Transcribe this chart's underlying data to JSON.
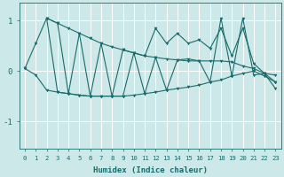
{
  "xlabel": "Humidex (Indice chaleur)",
  "xlim": [
    -0.5,
    23.5
  ],
  "ylim": [
    -1.55,
    1.35
  ],
  "yticks": [
    -1,
    0,
    1
  ],
  "xticks": [
    0,
    1,
    2,
    3,
    4,
    5,
    6,
    7,
    8,
    9,
    10,
    11,
    12,
    13,
    14,
    15,
    16,
    17,
    18,
    19,
    20,
    21,
    22,
    23
  ],
  "bg_color": "#cde8e8",
  "line_color": "#1a6b6b",
  "grid_color": "#ffffff",
  "series": [
    {
      "x": [
        0,
        1,
        2,
        3,
        4,
        5,
        6,
        7,
        8,
        9,
        10,
        11,
        12,
        13,
        14,
        15,
        16,
        17,
        18,
        19,
        20,
        21,
        22,
        23
      ],
      "y": [
        0.05,
        0.55,
        1.05,
        0.95,
        0.85,
        0.75,
        0.65,
        0.55,
        0.48,
        0.42,
        0.36,
        0.3,
        0.27,
        0.24,
        0.22,
        0.2,
        0.2,
        0.2,
        0.2,
        0.18,
        0.1,
        0.05,
        -0.05,
        -0.08
      ]
    },
    {
      "x": [
        0,
        1,
        2,
        3,
        4,
        5,
        6,
        7,
        8,
        9,
        10,
        11,
        12,
        13,
        14,
        15,
        16,
        17,
        18,
        19,
        20,
        21,
        22,
        23
      ],
      "y": [
        0.05,
        -0.08,
        -0.38,
        -0.42,
        -0.45,
        -0.48,
        -0.5,
        -0.5,
        -0.5,
        -0.5,
        -0.48,
        -0.45,
        -0.42,
        -0.38,
        -0.35,
        -0.32,
        -0.28,
        -0.22,
        -0.18,
        -0.1,
        -0.05,
        0.0,
        -0.1,
        -0.22
      ]
    },
    {
      "x": [
        2,
        3,
        4,
        5,
        6,
        7,
        8,
        9,
        10,
        11,
        12,
        13,
        14,
        15,
        16,
        17,
        18,
        19,
        20,
        21,
        22,
        23
      ],
      "y": [
        1.05,
        -0.42,
        -0.45,
        -0.48,
        -0.5,
        -0.5,
        -0.5,
        -0.5,
        0.36,
        -0.45,
        0.27,
        -0.38,
        0.22,
        0.24,
        0.2,
        -0.22,
        1.05,
        -0.1,
        1.05,
        -0.08,
        -0.05,
        -0.22
      ]
    },
    {
      "x": [
        2,
        3,
        4,
        5,
        6,
        7,
        8,
        9,
        10,
        11,
        12,
        13,
        14,
        15,
        16,
        17,
        18,
        19,
        20,
        21,
        22,
        23
      ],
      "y": [
        1.05,
        0.95,
        -0.45,
        0.75,
        -0.5,
        0.55,
        -0.5,
        0.42,
        0.36,
        0.3,
        0.85,
        0.55,
        0.75,
        0.55,
        0.62,
        0.45,
        0.85,
        0.3,
        0.85,
        0.15,
        -0.05,
        -0.35
      ]
    }
  ]
}
